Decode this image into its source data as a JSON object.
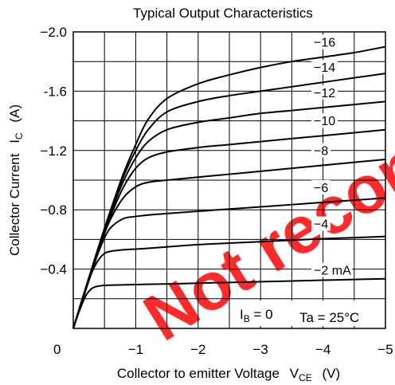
{
  "chart_data": {
    "type": "line",
    "title": "Typical Output Characteristics",
    "xlabel": "Collector to emitter Voltage",
    "xlabel_symbol": "V",
    "xlabel_sub": "CE",
    "xlabel_unit": "(V)",
    "ylabel": "Collector Current",
    "ylabel_symbol": "I",
    "ylabel_sub": "C",
    "ylabel_unit": "(A)",
    "xlim": [
      0,
      -5
    ],
    "ylim": [
      0,
      -2.0
    ],
    "x_ticks": [
      0,
      -1,
      -2,
      -3,
      -4,
      -5
    ],
    "x_tick_labels": [
      "0",
      "−1",
      "−2",
      "−3",
      "−4",
      "−5"
    ],
    "y_ticks": [
      -0.4,
      -0.8,
      -1.2,
      -1.6,
      -2.0
    ],
    "y_tick_labels": [
      "−0.4",
      "−0.8",
      "−1.2",
      "-1.6",
      "−2.0"
    ],
    "grid": true,
    "annotations": {
      "ib_zero_prefix": "I",
      "ib_zero_sub": "B",
      "ib_zero_suffix": " = 0",
      "temperature": "Ta = 25°C"
    },
    "watermark": "Not recommended for new design",
    "x": [
      0,
      -0.1,
      -0.2,
      -0.3,
      -0.4,
      -0.5,
      -0.6,
      -0.8,
      -1.0,
      -1.2,
      -1.5,
      -2.0,
      -2.5,
      -3.0,
      -3.5,
      -4.0,
      -4.5,
      -5.0
    ],
    "series": [
      {
        "name": "−2 mA",
        "values": [
          0,
          -0.12,
          -0.22,
          -0.27,
          -0.285,
          -0.29,
          -0.292,
          -0.294,
          -0.296,
          -0.298,
          -0.3,
          -0.305,
          -0.31,
          -0.315,
          -0.32,
          -0.325,
          -0.33,
          -0.335
        ]
      },
      {
        "name": "−4",
        "values": [
          0,
          -0.13,
          -0.26,
          -0.38,
          -0.46,
          -0.505,
          -0.52,
          -0.53,
          -0.535,
          -0.54,
          -0.55,
          -0.565,
          -0.575,
          -0.585,
          -0.595,
          -0.605,
          -0.612,
          -0.62
        ]
      },
      {
        "name": "−6",
        "values": [
          0,
          -0.13,
          -0.26,
          -0.39,
          -0.51,
          -0.61,
          -0.68,
          -0.74,
          -0.755,
          -0.765,
          -0.775,
          -0.79,
          -0.805,
          -0.82,
          -0.835,
          -0.85,
          -0.865,
          -0.88
        ]
      },
      {
        "name": "−8",
        "values": [
          0,
          -0.13,
          -0.26,
          -0.39,
          -0.52,
          -0.64,
          -0.74,
          -0.88,
          -0.955,
          -0.985,
          -1.0,
          -1.02,
          -1.04,
          -1.06,
          -1.08,
          -1.1,
          -1.12,
          -1.14
        ]
      },
      {
        "name": "−10",
        "values": [
          0,
          -0.135,
          -0.27,
          -0.4,
          -0.53,
          -0.65,
          -0.76,
          -0.95,
          -1.08,
          -1.15,
          -1.19,
          -1.22,
          -1.24,
          -1.26,
          -1.28,
          -1.3,
          -1.32,
          -1.34
        ]
      },
      {
        "name": "−12",
        "values": [
          0,
          -0.135,
          -0.27,
          -0.4,
          -0.53,
          -0.66,
          -0.78,
          -0.99,
          -1.15,
          -1.26,
          -1.34,
          -1.39,
          -1.42,
          -1.45,
          -1.47,
          -1.49,
          -1.51,
          -1.53
        ]
      },
      {
        "name": "−14",
        "values": [
          0,
          -0.135,
          -0.27,
          -0.405,
          -0.54,
          -0.67,
          -0.79,
          -1.02,
          -1.2,
          -1.34,
          -1.46,
          -1.53,
          -1.57,
          -1.6,
          -1.63,
          -1.66,
          -1.69,
          -1.72
        ]
      },
      {
        "name": "−16",
        "values": [
          0,
          -0.14,
          -0.275,
          -0.41,
          -0.545,
          -0.675,
          -0.8,
          -1.04,
          -1.24,
          -1.41,
          -1.55,
          -1.65,
          -1.71,
          -1.76,
          -1.8,
          -1.83,
          -1.86,
          -1.9
        ]
      }
    ]
  }
}
